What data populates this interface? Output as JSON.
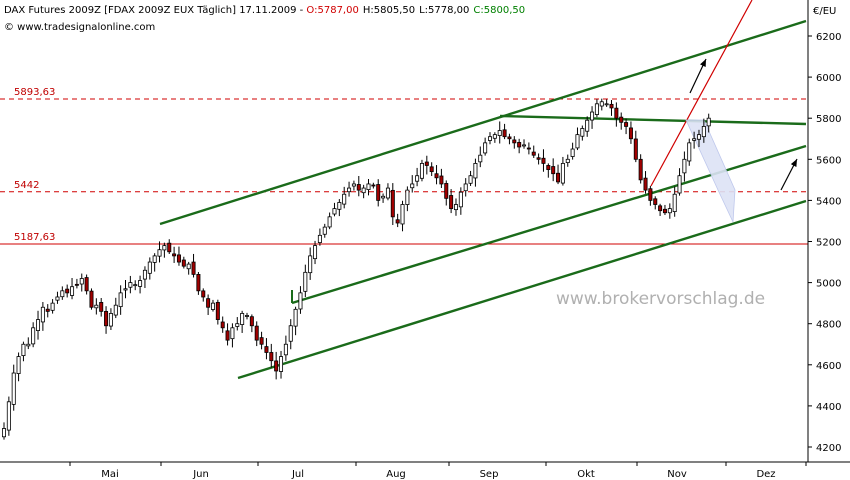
{
  "header": {
    "prefix": "DAX Futures 2009Z [FDAX 2009Z EUX  Täglich] 17.11.2009 - ",
    "open": "O:5787,00",
    "high": "H:5805,50",
    "low": "L:5778,00",
    "close": "C:5800,50",
    "source": "© www.tradesignalonline.com",
    "open_color": "#d00000",
    "close_color": "#008000"
  },
  "watermark": "www.brokervorschlag.de",
  "colors": {
    "up_candle": "#ffffff",
    "down_candle": "#a00000",
    "trend_lines": "#1a6b1a",
    "support_resistance": "#d00000",
    "axis": "#000000"
  },
  "chart_data": {
    "type": "candlestick",
    "title": "DAX Futures 2009Z [FDAX 2009Z EUX  Täglich] 17.11.2009",
    "ylabel": "€/EU",
    "ylim": [
      4150,
      6290
    ],
    "y_ticks": [
      4200,
      4400,
      4600,
      4800,
      5000,
      5200,
      5400,
      5600,
      5800,
      6000,
      6200
    ],
    "x_ticks": [
      "Mai",
      "Jun",
      "Jul",
      "Aug",
      "Sep",
      "Okt",
      "Nov",
      "Dez"
    ],
    "grid": false,
    "horizontal_levels": [
      {
        "label": "5893,63",
        "value": 5893.63,
        "style": "dashed"
      },
      {
        "label": "5442",
        "value": 5442,
        "style": "dashed"
      },
      {
        "label": "5187,63",
        "value": 5187.63,
        "style": "solid"
      }
    ],
    "last_values": {
      "open": 5787.0,
      "high": 5805.5,
      "low": 5778.0,
      "close": 5800.5
    },
    "price_path_daily_closes": [
      4290,
      4420,
      4560,
      4640,
      4700,
      4700,
      4780,
      4820,
      4880,
      4860,
      4900,
      4930,
      4960,
      4950,
      4980,
      4990,
      5020,
      4960,
      4880,
      4890,
      4860,
      4790,
      4850,
      4890,
      4950,
      4970,
      5000,
      4990,
      5010,
      5060,
      5100,
      5130,
      5160,
      5180,
      5150,
      5130,
      5100,
      5080,
      5090,
      5040,
      4960,
      4930,
      4880,
      4900,
      4820,
      4780,
      4720,
      4780,
      4800,
      4850,
      4840,
      4790,
      4720,
      4700,
      4660,
      4620,
      4570,
      4640,
      4700,
      4790,
      4870,
      4950,
      5050,
      5130,
      5180,
      5230,
      5270,
      5320,
      5360,
      5390,
      5430,
      5460,
      5480,
      5450,
      5460,
      5480,
      5470,
      5400,
      5420,
      5460,
      5320,
      5290,
      5380,
      5450,
      5480,
      5520,
      5580,
      5570,
      5540,
      5510,
      5480,
      5410,
      5360,
      5380,
      5440,
      5480,
      5520,
      5580,
      5620,
      5680,
      5710,
      5720,
      5740,
      5710,
      5700,
      5680,
      5660,
      5670,
      5650,
      5620,
      5600,
      5580,
      5550,
      5530,
      5490,
      5580,
      5600,
      5650,
      5720,
      5750,
      5790,
      5830,
      5870,
      5880,
      5870,
      5850,
      5800,
      5780,
      5760,
      5700,
      5600,
      5500,
      5450,
      5400,
      5380,
      5350,
      5340,
      5360,
      5430,
      5520,
      5600,
      5680,
      5700,
      5720,
      5760,
      5800
    ]
  }
}
